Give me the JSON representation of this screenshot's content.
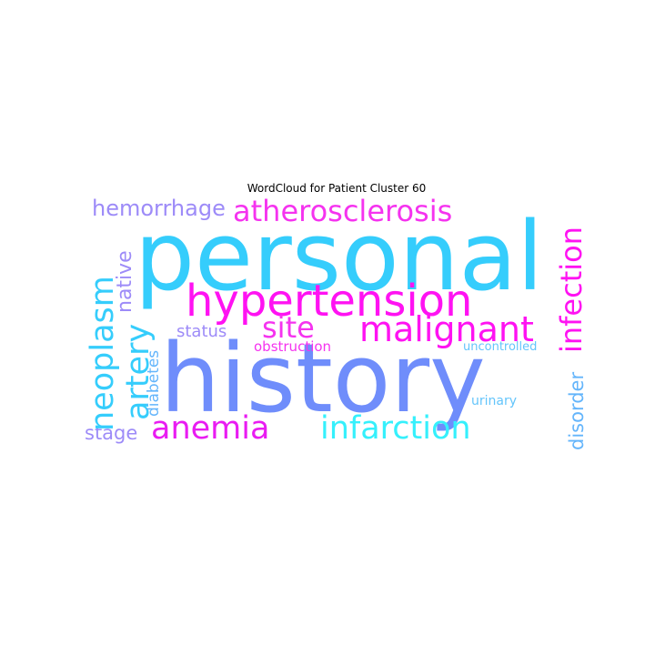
{
  "title": "WordCloud for Patient Cluster 60",
  "colors": {
    "cyan": "#35cdfc",
    "magenta": "#ff12f2",
    "periwinkle": "#6f8dfb",
    "lavender": "#9d8bf8",
    "lightblue": "#64b5fb",
    "pink": "#f533ef"
  },
  "words": [
    {
      "text": "personal",
      "color": "#35cdfc"
    },
    {
      "text": "history",
      "color": "#6f8dfb"
    },
    {
      "text": "hypertension",
      "color": "#ff12f2"
    },
    {
      "text": "atherosclerosis",
      "color": "#f533ef"
    },
    {
      "text": "malignant",
      "color": "#ff12f2"
    },
    {
      "text": "infarction",
      "color": "#35f0fc"
    },
    {
      "text": "anemia",
      "color": "#e91cf2"
    },
    {
      "text": "neoplasm",
      "color": "#35cdfc"
    },
    {
      "text": "artery",
      "color": "#35cdfc"
    },
    {
      "text": "infection",
      "color": "#ff12f2"
    },
    {
      "text": "site",
      "color": "#f533ef"
    },
    {
      "text": "hemorrhage",
      "color": "#9d8bf8"
    },
    {
      "text": "native",
      "color": "#9d8bf8"
    },
    {
      "text": "disorder",
      "color": "#64b5fb"
    },
    {
      "text": "stage",
      "color": "#9d8bf8"
    },
    {
      "text": "diabetes",
      "color": "#64b5fb"
    },
    {
      "text": "status",
      "color": "#9d8bf8"
    },
    {
      "text": "obstruction",
      "color": "#f533ef"
    },
    {
      "text": "uncontrolled",
      "color": "#64c5fb"
    },
    {
      "text": "urinary",
      "color": "#64c5fb"
    }
  ]
}
